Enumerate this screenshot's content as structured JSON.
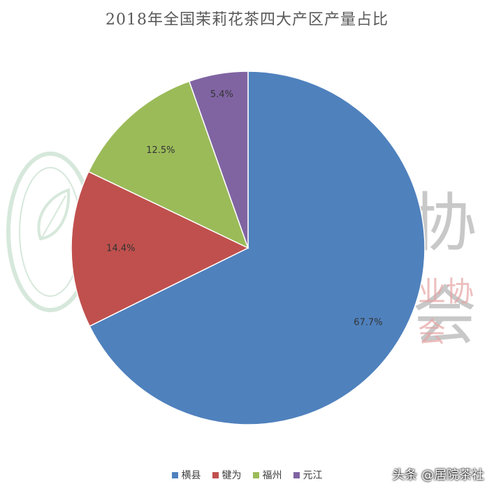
{
  "chart_data": {
    "type": "pie",
    "title": "2018年全国茉莉花茶四大产区产量占比",
    "categories": [
      "横县",
      "犍为",
      "福州",
      "元江"
    ],
    "values": [
      67.7,
      14.4,
      12.5,
      5.4
    ],
    "data_labels": [
      "67.7%",
      "14.4%",
      "12.5%",
      "5.4%"
    ],
    "colors": [
      "#4f81bd",
      "#c0504d",
      "#9bbb59",
      "#8064a2"
    ],
    "legend_position": "bottom",
    "start_angle": "top, clockwise"
  },
  "watermark": {
    "right_top": "协会",
    "right_bottom": "业协会",
    "seal_icon": "leaf-seal-icon"
  },
  "credit": "头条 @居院茶社"
}
